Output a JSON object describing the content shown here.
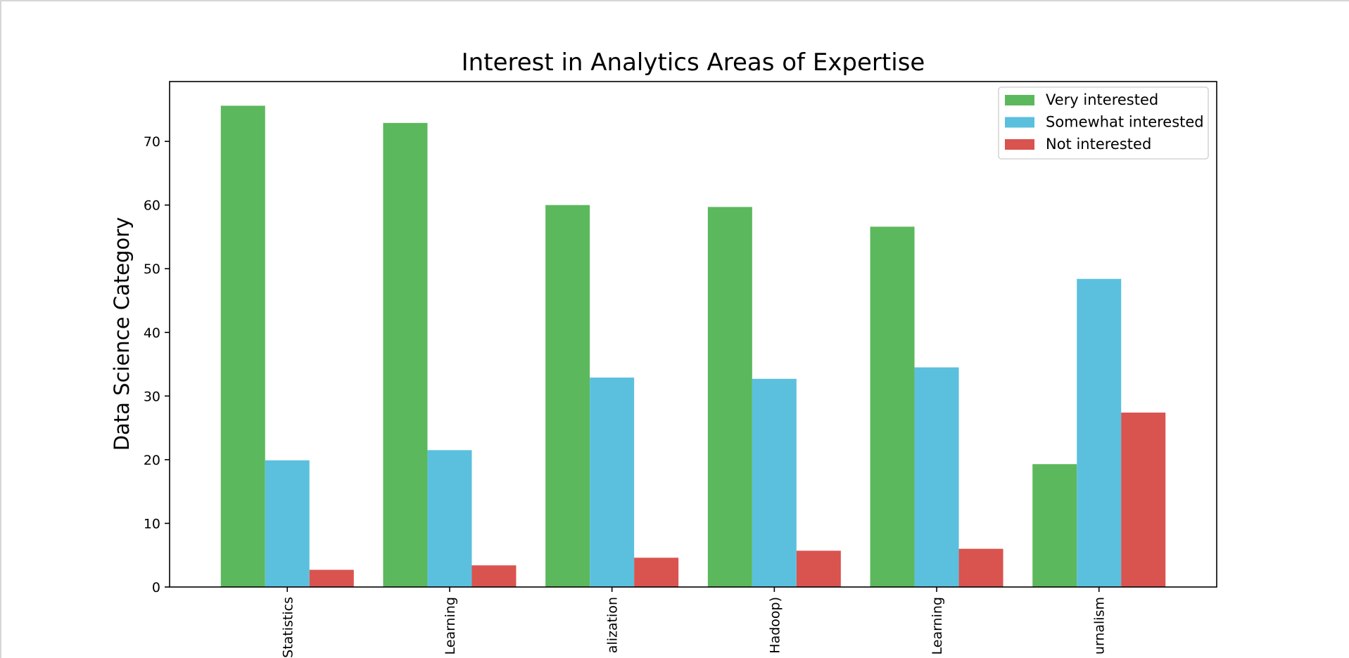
{
  "chart_data": {
    "type": "bar",
    "title": "Interest in Analytics Areas of Expertise",
    "xlabel": "",
    "ylabel": "Data Science Category",
    "categories": [
      "Statistics",
      "Learning",
      "alization",
      "Hadoop)",
      "Learning",
      "urnalism"
    ],
    "series": [
      {
        "name": "Very interested",
        "color": "#5cb85c",
        "values": [
          75.6,
          72.9,
          60.0,
          59.7,
          56.6,
          19.3
        ]
      },
      {
        "name": "Somewhat interested",
        "color": "#5bc0de",
        "values": [
          19.9,
          21.5,
          32.9,
          32.7,
          34.5,
          48.4
        ]
      },
      {
        "name": "Not interested",
        "color": "#d9534f",
        "values": [
          2.7,
          3.4,
          4.6,
          5.7,
          6.0,
          27.4
        ]
      }
    ],
    "ylim": [
      0,
      79.4
    ],
    "yticks": [
      0,
      10,
      20,
      30,
      40,
      50,
      60,
      70
    ],
    "grid": false,
    "legend_position": "top-right"
  }
}
